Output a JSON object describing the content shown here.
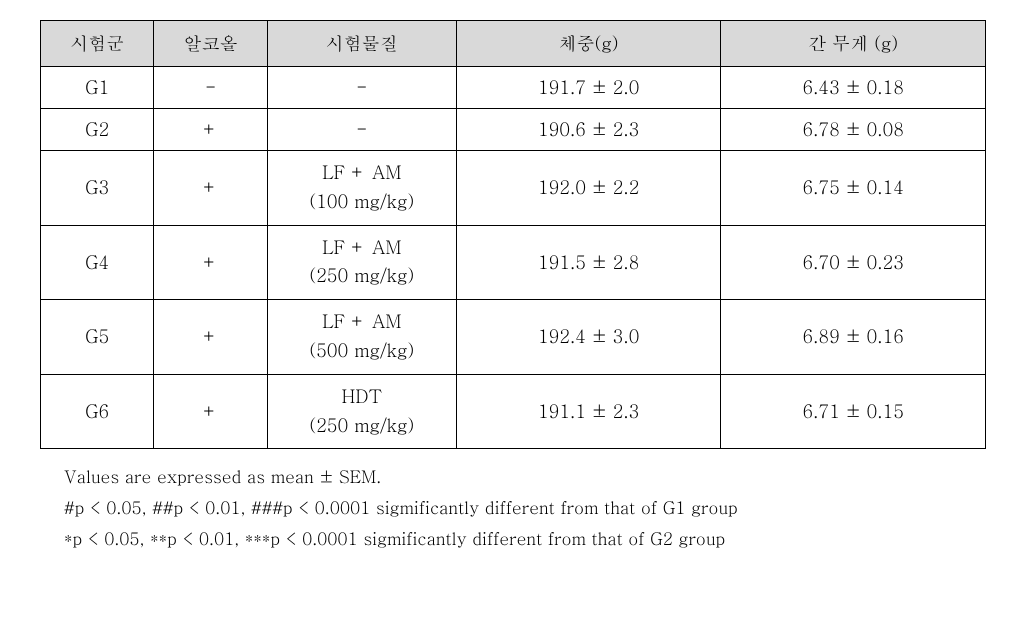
{
  "table": {
    "columns": [
      {
        "label": "시험군",
        "width_pct": 12
      },
      {
        "label": "알코올",
        "width_pct": 12
      },
      {
        "label": "시험물질",
        "width_pct": 20
      },
      {
        "label": "체중(g)",
        "width_pct": 28
      },
      {
        "label": "간 무게 (g)",
        "width_pct": 28
      }
    ],
    "header_bg": "#d9d9d9",
    "border_color": "#000000",
    "rows": [
      {
        "group": "G1",
        "alcohol": "-",
        "substance_line1": "-",
        "substance_line2": "",
        "body_weight": "191.7 ± 2.0",
        "liver_weight": "6.43 ± 0.18"
      },
      {
        "group": "G2",
        "alcohol": "+",
        "substance_line1": "-",
        "substance_line2": "",
        "body_weight": "190.6 ± 2.3",
        "liver_weight": "6.78 ± 0.08"
      },
      {
        "group": "G3",
        "alcohol": "+",
        "substance_line1": "LF + AM",
        "substance_line2": "(100 mg/kg)",
        "body_weight": "192.0 ± 2.2",
        "liver_weight": "6.75 ± 0.14"
      },
      {
        "group": "G4",
        "alcohol": "+",
        "substance_line1": "LF + AM",
        "substance_line2": "(250 mg/kg)",
        "body_weight": "191.5 ± 2.8",
        "liver_weight": "6.70 ± 0.23"
      },
      {
        "group": "G5",
        "alcohol": "+",
        "substance_line1": "LF + AM",
        "substance_line2": "(500 mg/kg)",
        "body_weight": "192.4 ± 3.0",
        "liver_weight": "6.89 ± 0.16"
      },
      {
        "group": "G6",
        "alcohol": "+",
        "substance_line1": "HDT",
        "substance_line2": "(250 mg/kg)",
        "body_weight": "191.1 ± 2.3",
        "liver_weight": "6.71 ± 0.15"
      }
    ]
  },
  "footnotes": {
    "line1": "Values are expressed as mean ± SEM.",
    "line2": "#p < 0.05, ##p < 0.01, ###p < 0.0001 sigmificantly different from that of G1 group",
    "line3": "*p < 0.05, **p < 0.01, ***p < 0.0001 sigmificantly different from that of G2 group"
  }
}
